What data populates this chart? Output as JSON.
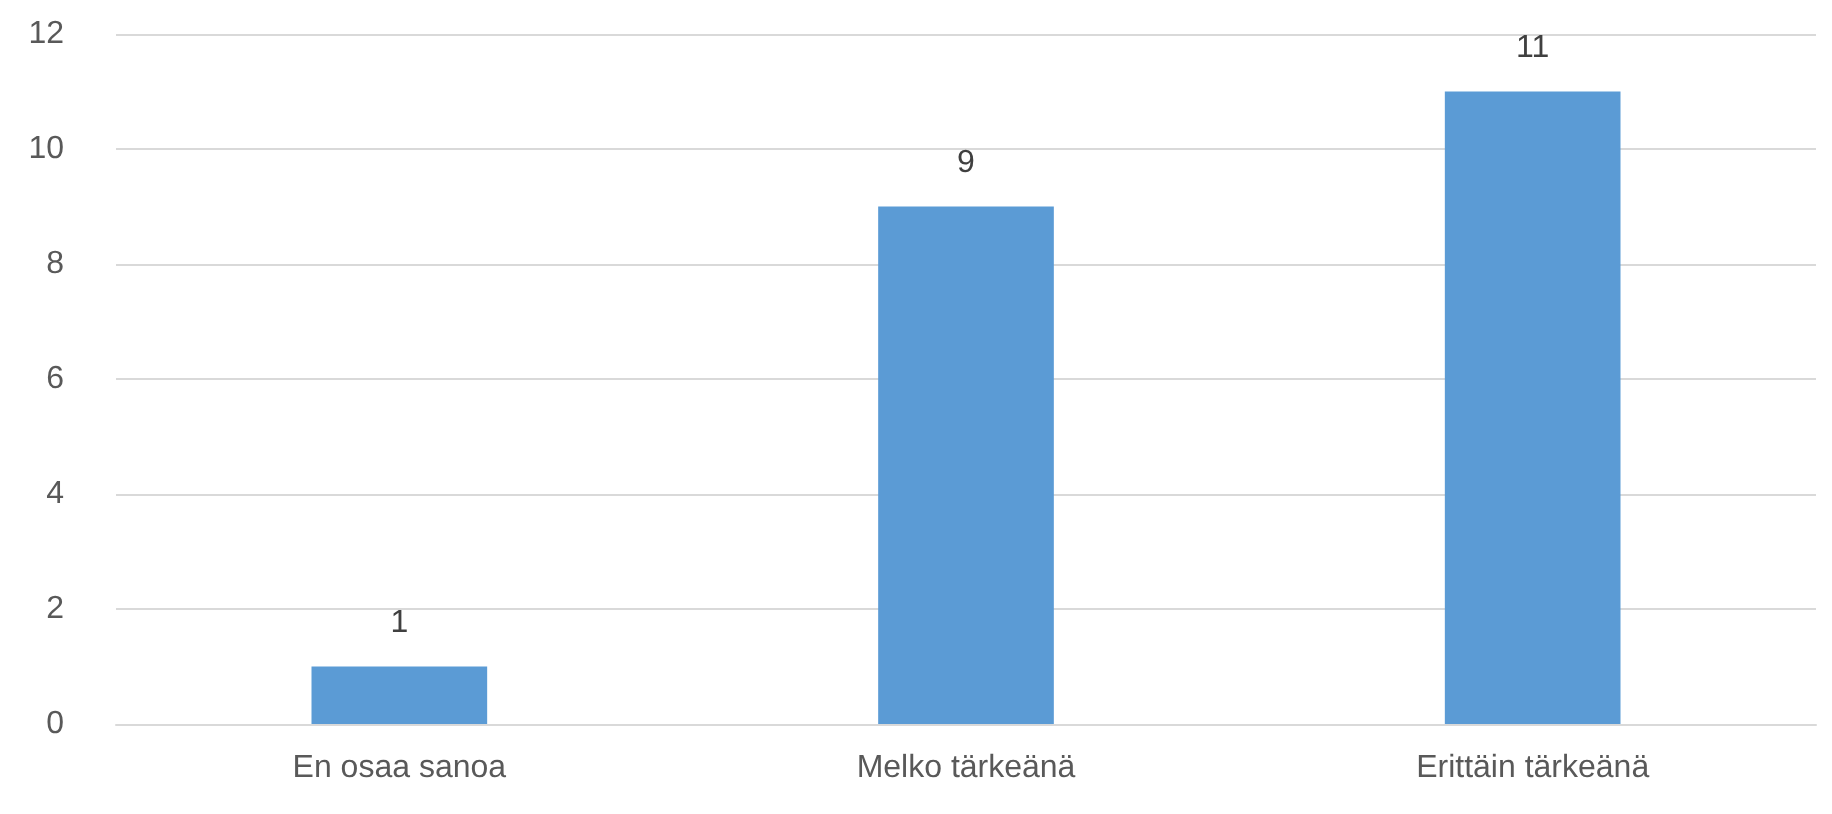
{
  "chart_data": {
    "type": "bar",
    "categories": [
      "En osaa sanoa",
      "Melko tärkeänä",
      "Erittäin tärkeänä"
    ],
    "values": [
      1,
      9,
      11
    ],
    "color": "#5b9bd5",
    "ylim": [
      0,
      12
    ],
    "yticks": [
      0,
      2,
      4,
      6,
      8,
      10,
      12
    ],
    "grid": "y",
    "data_labels": true
  }
}
